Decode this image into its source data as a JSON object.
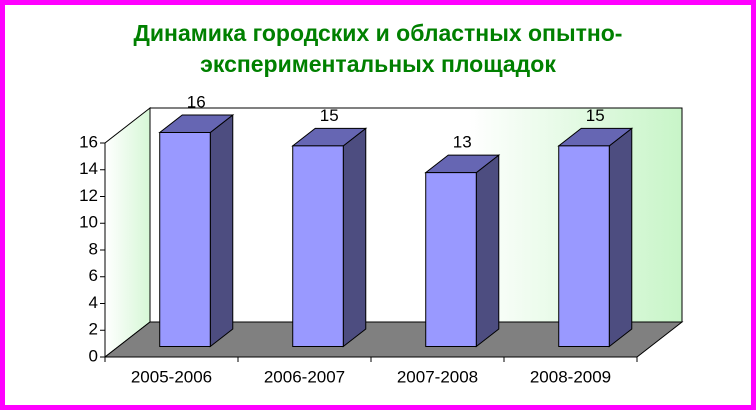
{
  "chart_data": {
    "type": "bar3d",
    "title": [
      "Динамика городских и областных опытно-",
      "экспериментальных площадок"
    ],
    "categories": [
      "2005-2006",
      "2006-2007",
      "2007-2008",
      "2008-2009"
    ],
    "values": [
      16,
      15,
      13,
      15
    ],
    "color": "#9999ff",
    "ylim": [
      0,
      16
    ],
    "yticks": [
      0,
      2,
      4,
      6,
      8,
      10,
      12,
      14,
      16
    ],
    "grid": false
  }
}
